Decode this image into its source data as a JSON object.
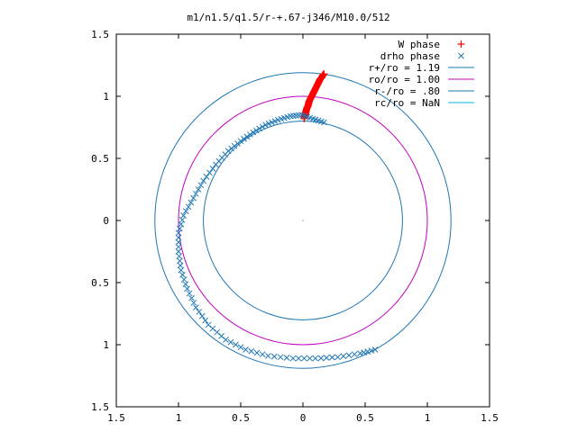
{
  "chart_data": {
    "type": "scatter",
    "title": "m1/n1.5/q1.5/r-+.67-j346/M10.0/512",
    "xlabel": "",
    "ylabel": "",
    "xlim": [
      -1.5,
      1.5
    ],
    "ylim": [
      -1.5,
      1.5
    ],
    "x_ticks": [
      -1.5,
      -1,
      -0.5,
      0,
      0.5,
      1,
      1.5
    ],
    "y_ticks": [
      -1.5,
      -1,
      -0.5,
      0,
      0.5,
      1,
      1.5
    ],
    "x_tick_labels": [
      "1.5",
      "1",
      "0.5",
      "0",
      "0.5",
      "1",
      "1.5"
    ],
    "y_tick_labels": [
      "1.5",
      "1",
      "0.5",
      "0",
      "0.5",
      "1",
      "1.5"
    ],
    "grid": false,
    "legend_position": "top-right",
    "series": [
      {
        "name": "W phase",
        "kind": "points",
        "marker": "+",
        "color": "#ff0000",
        "points": [
          [
            0.01,
            0.82
          ],
          [
            0.015,
            0.84
          ],
          [
            0.02,
            0.86
          ],
          [
            0.025,
            0.88
          ],
          [
            0.03,
            0.9
          ],
          [
            0.04,
            0.92
          ],
          [
            0.045,
            0.94
          ],
          [
            0.05,
            0.96
          ],
          [
            0.06,
            0.98
          ],
          [
            0.07,
            1.0
          ],
          [
            0.08,
            1.02
          ],
          [
            0.09,
            1.04
          ],
          [
            0.1,
            1.06
          ],
          [
            0.11,
            1.08
          ],
          [
            0.12,
            1.1
          ],
          [
            0.13,
            1.12
          ],
          [
            0.14,
            1.14
          ],
          [
            0.15,
            1.15
          ],
          [
            0.16,
            1.17
          ],
          [
            0.17,
            1.18
          ]
        ]
      },
      {
        "name": "drho phase",
        "kind": "points",
        "marker": "x",
        "color": "#1f77b4",
        "points": [
          [
            0.17,
            0.79
          ],
          [
            0.08,
            0.82
          ],
          [
            -0.01,
            0.85
          ],
          [
            -0.1,
            0.84
          ],
          [
            -0.2,
            0.81
          ],
          [
            -0.3,
            0.77
          ],
          [
            -0.4,
            0.71
          ],
          [
            -0.5,
            0.64
          ],
          [
            -0.6,
            0.56
          ],
          [
            -0.7,
            0.45
          ],
          [
            -0.8,
            0.32
          ],
          [
            -0.88,
            0.18
          ],
          [
            -0.96,
            0.04
          ],
          [
            -1.0,
            -0.1
          ],
          [
            -1.0,
            -0.25
          ],
          [
            -0.98,
            -0.4
          ],
          [
            -0.93,
            -0.55
          ],
          [
            -0.86,
            -0.7
          ],
          [
            -0.76,
            -0.84
          ],
          [
            -0.62,
            -0.96
          ],
          [
            -0.46,
            -1.04
          ],
          [
            -0.28,
            -1.09
          ],
          [
            -0.08,
            -1.11
          ],
          [
            0.1,
            -1.11
          ],
          [
            0.28,
            -1.1
          ],
          [
            0.46,
            -1.07
          ],
          [
            0.58,
            -1.04
          ]
        ]
      },
      {
        "name": "r+/ro = 1.19",
        "kind": "circle",
        "radius": 1.19,
        "color": "#1f77b4"
      },
      {
        "name": "ro/ro = 1.00",
        "kind": "circle",
        "radius": 1.0,
        "color": "#c000c0"
      },
      {
        "name": "r-/ro = .80",
        "kind": "circle",
        "radius": 0.8,
        "color": "#1f77b4"
      },
      {
        "name": "rc/ro = NaN",
        "kind": "circle",
        "radius": null,
        "color": "#00bcd4"
      }
    ]
  }
}
